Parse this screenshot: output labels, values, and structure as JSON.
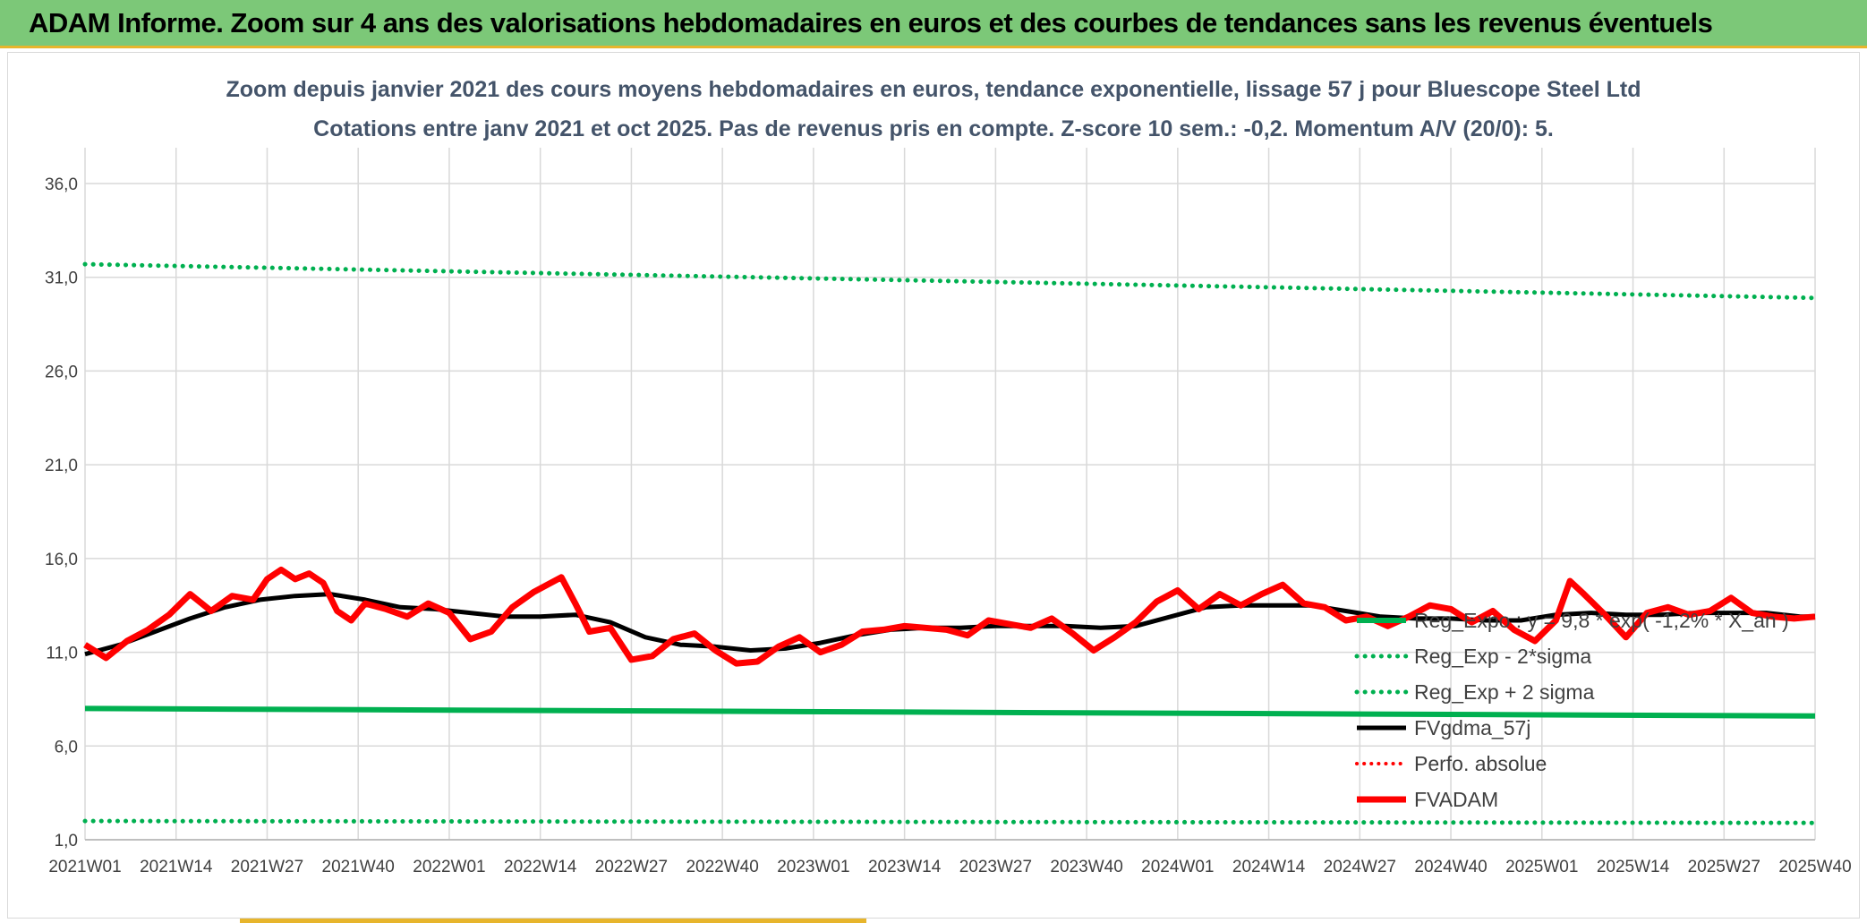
{
  "banner": {
    "title": "ADAM Informe. Zoom sur 4 ans des valorisations hebdomadaires en euros et des courbes de tendances sans les revenus éventuels"
  },
  "colors": {
    "banner_bg": "#7cc878",
    "accent": "#e7b52c",
    "reg_expo": "#00b050",
    "fvgdma": "#000000",
    "perfo": "#ff0000",
    "fvadam": "#ff0000",
    "grid": "#d9d9d9"
  },
  "chart_data": {
    "type": "line",
    "title_line1": "Zoom depuis janvier 2021 des cours moyens hebdomadaires en euros, tendance exponentielle, lissage 57 j pour Bluescope Steel Ltd",
    "title_line2": "Cotations entre janv 2021 et oct 2025. Pas de revenus pris en compte. Z-score 10 sem.: -0,2. Momentum A/V (20/0): 5.",
    "ylim": [
      1,
      36
    ],
    "y_ticks": [
      1,
      6,
      11,
      16,
      21,
      26,
      31,
      36
    ],
    "y_tick_labels": [
      "1,0",
      "6,0",
      "11,0",
      "16,0",
      "21,0",
      "26,0",
      "31,0",
      "36,0"
    ],
    "x_range": [
      0,
      247
    ],
    "x_ticks": [
      0,
      13,
      26,
      39,
      52,
      65,
      78,
      91,
      104,
      117,
      130,
      143,
      156,
      169,
      182,
      195,
      208,
      221,
      234,
      247
    ],
    "x_tick_labels": [
      "2021W01",
      "2021W14",
      "2021W27",
      "2021W40",
      "2022W01",
      "2022W14",
      "2022W27",
      "2022W40",
      "2023W01",
      "2023W14",
      "2023W27",
      "2023W40",
      "2024W01",
      "2024W14",
      "2024W27",
      "2024W40",
      "2025W01",
      "2025W14",
      "2025W27",
      "2025W40"
    ],
    "legend": {
      "position": "bottom-right",
      "entries": [
        {
          "label": "Reg_Expo : y = 9,8 * exp( -1,2% * X_an )",
          "style": "solid-green"
        },
        {
          "label": "Reg_Exp - 2*sigma",
          "style": "dotted-green"
        },
        {
          "label": "Reg_Exp + 2 sigma",
          "style": "dotted-green"
        },
        {
          "label": "FVgdma_57j",
          "style": "solid-black"
        },
        {
          "label": "Perfo. absolue",
          "style": "dotted-red"
        },
        {
          "label": "FVADAM",
          "style": "solid-red"
        }
      ]
    },
    "series": [
      {
        "name": "Reg_Expo",
        "style": "solid-green",
        "x": [
          0,
          247
        ],
        "values": [
          8.0,
          7.6
        ]
      },
      {
        "name": "Reg_Exp - 2*sigma",
        "style": "dotted-green",
        "x": [
          0,
          247
        ],
        "values": [
          2.0,
          1.9
        ]
      },
      {
        "name": "Reg_Exp + 2 sigma",
        "style": "dotted-green",
        "x": [
          0,
          247
        ],
        "values": [
          31.7,
          29.9
        ]
      },
      {
        "name": "FVgdma_57j",
        "style": "solid-black",
        "x": [
          0,
          5,
          10,
          15,
          20,
          25,
          30,
          35,
          40,
          45,
          50,
          55,
          60,
          65,
          70,
          75,
          80,
          85,
          90,
          95,
          100,
          105,
          110,
          115,
          120,
          125,
          130,
          135,
          140,
          145,
          150,
          155,
          160,
          165,
          170,
          175,
          180,
          185,
          190,
          195,
          200,
          205,
          210,
          215,
          220,
          225,
          230,
          235,
          240,
          245,
          247
        ],
        "values": [
          10.9,
          11.4,
          12.1,
          12.8,
          13.4,
          13.8,
          14.0,
          14.1,
          13.8,
          13.4,
          13.3,
          13.1,
          12.9,
          12.9,
          13.0,
          12.6,
          11.8,
          11.4,
          11.3,
          11.1,
          11.2,
          11.5,
          11.9,
          12.2,
          12.3,
          12.3,
          12.4,
          12.4,
          12.4,
          12.3,
          12.4,
          12.9,
          13.4,
          13.5,
          13.5,
          13.5,
          13.2,
          12.9,
          12.8,
          12.8,
          12.7,
          12.7,
          13.0,
          13.1,
          13.0,
          13.0,
          13.1,
          13.1,
          13.1,
          12.9,
          12.9
        ]
      },
      {
        "name": "FVADAM",
        "style": "solid-red",
        "x": [
          0,
          3,
          6,
          9,
          12,
          15,
          18,
          21,
          24,
          26,
          28,
          30,
          32,
          34,
          36,
          38,
          40,
          43,
          46,
          49,
          52,
          55,
          58,
          61,
          64,
          66,
          68,
          70,
          72,
          75,
          78,
          81,
          84,
          87,
          90,
          93,
          96,
          99,
          102,
          105,
          108,
          111,
          114,
          117,
          120,
          123,
          126,
          129,
          132,
          135,
          138,
          141,
          144,
          147,
          150,
          153,
          156,
          159,
          162,
          165,
          168,
          171,
          174,
          177,
          180,
          183,
          186,
          189,
          192,
          195,
          198,
          201,
          204,
          207,
          210,
          212,
          214,
          217,
          220,
          223,
          226,
          229,
          232,
          235,
          238,
          241,
          244,
          247
        ],
        "values": [
          11.4,
          10.7,
          11.6,
          12.2,
          13.0,
          14.1,
          13.2,
          14.0,
          13.8,
          14.9,
          15.4,
          14.9,
          15.2,
          14.7,
          13.2,
          12.7,
          13.6,
          13.3,
          12.9,
          13.6,
          13.1,
          11.7,
          12.1,
          13.4,
          14.2,
          14.6,
          15.0,
          13.6,
          12.1,
          12.3,
          10.6,
          10.8,
          11.7,
          12.0,
          11.1,
          10.4,
          10.5,
          11.3,
          11.8,
          11.0,
          11.4,
          12.1,
          12.2,
          12.4,
          12.3,
          12.2,
          11.9,
          12.7,
          12.5,
          12.3,
          12.8,
          12.0,
          11.1,
          11.8,
          12.6,
          13.7,
          14.3,
          13.3,
          14.1,
          13.5,
          14.1,
          14.6,
          13.6,
          13.4,
          12.7,
          12.9,
          12.4,
          12.9,
          13.5,
          13.3,
          12.6,
          13.2,
          12.2,
          11.6,
          12.7,
          14.8,
          14.1,
          13.0,
          11.8,
          13.1,
          13.4,
          13.0,
          13.2,
          13.9,
          13.1,
          12.9,
          12.8,
          12.9
        ]
      }
    ]
  }
}
